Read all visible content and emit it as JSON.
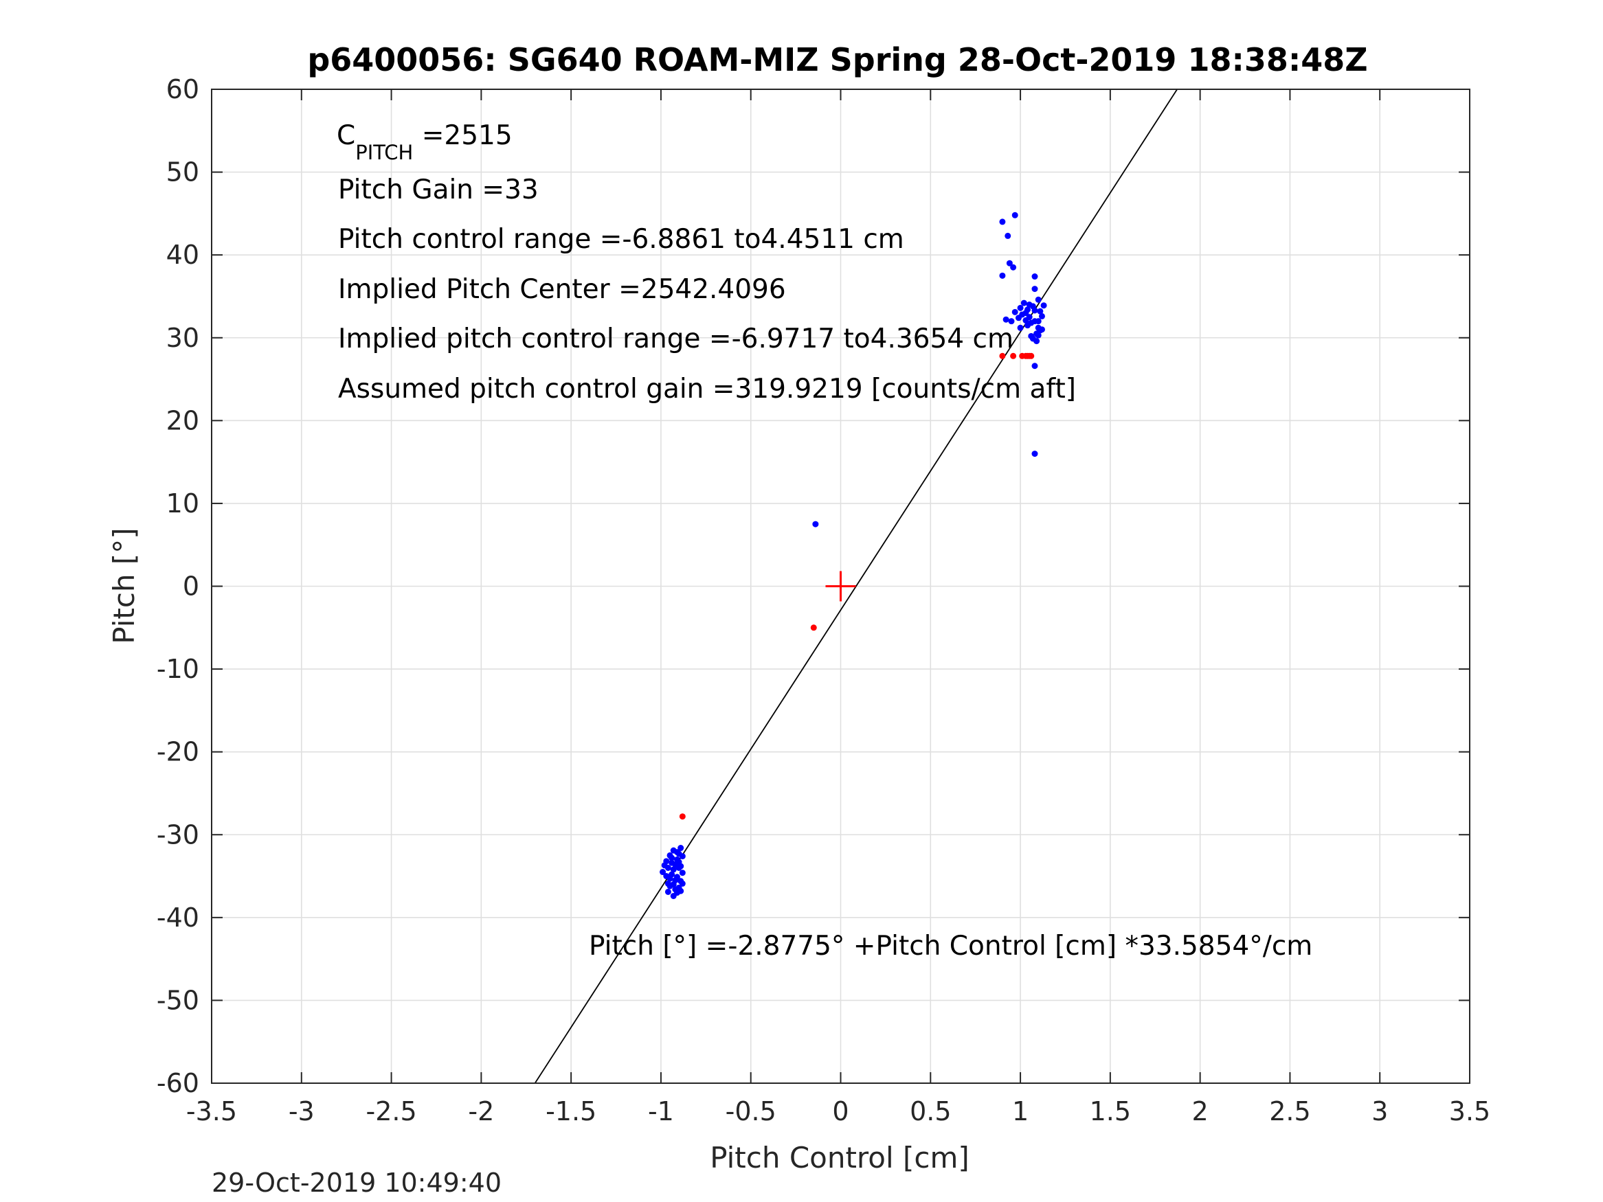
{
  "chart_data": {
    "type": "scatter",
    "title": "p6400056: SG640 ROAM-MIZ Spring 28-Oct-2019 18:38:48Z",
    "xlabel": "Pitch Control [cm]",
    "ylabel": "Pitch [°]",
    "xlim": [
      -3.5,
      3.5
    ],
    "ylim": [
      -60,
      60
    ],
    "xticks": [
      -3.5,
      -3,
      -2.5,
      -2,
      -1.5,
      -1,
      -0.5,
      0,
      0.5,
      1,
      1.5,
      2,
      2.5,
      3,
      3.5
    ],
    "yticks": [
      -60,
      -50,
      -40,
      -30,
      -20,
      -10,
      0,
      10,
      20,
      30,
      40,
      50,
      60
    ],
    "grid": true,
    "annotations": {
      "c_pitch_main": "C",
      "c_pitch_sub": "PITCH",
      "c_pitch_value": " =2515",
      "pitch_gain": "Pitch Gain =33",
      "pitch_control_range": "Pitch control range =-6.8861 to4.4511 cm",
      "implied_pitch_center": "Implied Pitch Center =2542.4096",
      "implied_range": "Implied pitch control range =-6.9717 to4.3654 cm",
      "assumed_gain": "Assumed pitch control gain =319.9219 [counts/cm aft]",
      "fit_equation": "Pitch [°] =-2.8775° +Pitch Control [cm] *33.5854°/cm"
    },
    "fit_line": {
      "intercept": -2.8775,
      "slope": 33.5854,
      "color": "#000000"
    },
    "center_marker": {
      "x": 0,
      "y": 0,
      "color": "#ff0000",
      "shape": "plus"
    },
    "series": [
      {
        "color": "#0000ff",
        "points": [
          [
            -0.14,
            7.5
          ],
          [
            1.08,
            16.0
          ],
          [
            0.97,
            44.8
          ],
          [
            0.9,
            44.0
          ],
          [
            0.93,
            42.3
          ],
          [
            0.94,
            39.0
          ],
          [
            0.96,
            38.5
          ],
          [
            0.9,
            37.5
          ],
          [
            1.08,
            37.4
          ],
          [
            1.08,
            35.9
          ],
          [
            1.1,
            34.6
          ],
          [
            1.08,
            26.6
          ],
          [
            0.92,
            32.2
          ],
          [
            0.95,
            32.0
          ],
          [
            0.97,
            33.1
          ],
          [
            1.0,
            33.6
          ],
          [
            1.02,
            34.2
          ],
          [
            1.03,
            33.0
          ],
          [
            1.05,
            32.5
          ],
          [
            1.06,
            31.8
          ],
          [
            1.07,
            33.8
          ],
          [
            1.08,
            32.0
          ],
          [
            1.09,
            30.5
          ],
          [
            1.1,
            31.2
          ],
          [
            1.11,
            33.2
          ],
          [
            1.12,
            32.6
          ],
          [
            1.13,
            33.9
          ],
          [
            1.04,
            31.5
          ],
          [
            1.06,
            30.2
          ],
          [
            1.09,
            29.6
          ],
          [
            1.11,
            30.9
          ],
          [
            1.01,
            32.8
          ],
          [
            1.0,
            31.2
          ],
          [
            1.04,
            33.4
          ],
          [
            1.1,
            32.0
          ],
          [
            1.12,
            31.0
          ],
          [
            1.07,
            29.9
          ],
          [
            1.03,
            32.1
          ],
          [
            0.99,
            32.4
          ],
          [
            1.05,
            34.0
          ],
          [
            1.08,
            33.3
          ],
          [
            1.1,
            30.3
          ],
          [
            -0.89,
            -31.6
          ],
          [
            -0.9,
            -32.3
          ],
          [
            -0.91,
            -33.0
          ],
          [
            -0.92,
            -33.6
          ],
          [
            -0.93,
            -34.2
          ],
          [
            -0.94,
            -34.8
          ],
          [
            -0.95,
            -35.3
          ],
          [
            -0.96,
            -35.9
          ],
          [
            -0.9,
            -36.4
          ],
          [
            -0.91,
            -37.0
          ],
          [
            -0.93,
            -37.4
          ],
          [
            -0.88,
            -34.6
          ],
          [
            -0.89,
            -35.6
          ],
          [
            -0.9,
            -33.3
          ],
          [
            -0.92,
            -36.6
          ],
          [
            -0.94,
            -32.8
          ],
          [
            -0.96,
            -34.0
          ],
          [
            -0.97,
            -35.0
          ],
          [
            -0.98,
            -33.7
          ],
          [
            -0.99,
            -34.5
          ],
          [
            -0.88,
            -32.6
          ],
          [
            -0.89,
            -36.8
          ],
          [
            -0.95,
            -36.2
          ],
          [
            -0.91,
            -35.1
          ],
          [
            -0.93,
            -31.9
          ],
          [
            -0.9,
            -34.0
          ],
          [
            -0.92,
            -35.5
          ],
          [
            -0.94,
            -33.4
          ],
          [
            -0.96,
            -36.9
          ],
          [
            -0.89,
            -33.8
          ],
          [
            -0.91,
            -32.1
          ],
          [
            -0.93,
            -36.0
          ],
          [
            -0.95,
            -32.5
          ],
          [
            -0.88,
            -35.9
          ],
          [
            -0.97,
            -33.2
          ]
        ]
      },
      {
        "color": "#ff0000",
        "points": [
          [
            -0.88,
            -27.8
          ],
          [
            -0.15,
            -5.0
          ],
          [
            0.9,
            27.8
          ],
          [
            0.96,
            27.8
          ],
          [
            1.01,
            27.8
          ],
          [
            1.03,
            27.8
          ],
          [
            1.04,
            27.8
          ],
          [
            1.05,
            27.8
          ],
          [
            1.06,
            27.8
          ]
        ]
      }
    ]
  },
  "footer": {
    "timestamp": "29-Oct-2019 10:49:40"
  }
}
